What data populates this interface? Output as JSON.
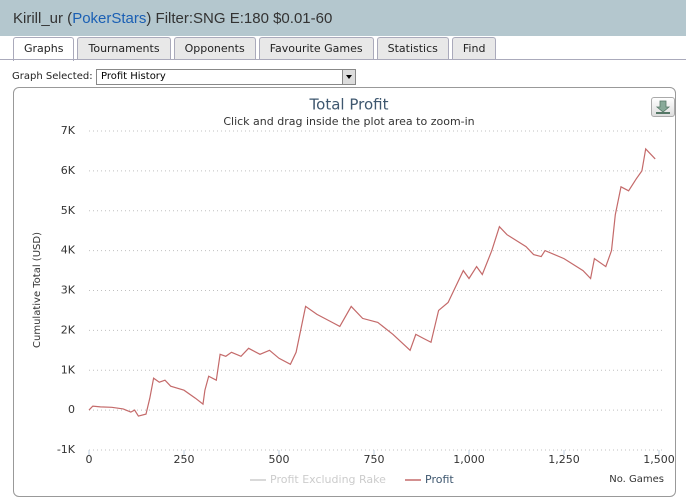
{
  "header": {
    "user": "Kirill_ur (",
    "site": "PokerStars",
    "filter": ") Filter:SNG E:180 $0.01-60"
  },
  "tabs": [
    "Graphs",
    "Tournaments",
    "Opponents",
    "Favourite Games",
    "Statistics",
    "Find"
  ],
  "active_tab": 0,
  "selector": {
    "label": "Graph Selected:",
    "value": "Profit History"
  },
  "chart_data": {
    "type": "line",
    "title": "Total Profit",
    "subtitle": "Click and drag inside the plot area to zoom-in",
    "y_label": "Cumulative Total (USD)",
    "x_label": "No. Games",
    "xlim": [
      0,
      1500
    ],
    "xticks": [
      0,
      250,
      500,
      750,
      {
        "value": 1000,
        "label": "1,000"
      },
      {
        "value": 1250,
        "label": "1,250"
      },
      {
        "value": 1500,
        "label": "1,500"
      }
    ],
    "ylim": [
      -1000,
      7000
    ],
    "yticks": [
      {
        "value": -1000,
        "label": "-1K"
      },
      0,
      {
        "value": 1000,
        "label": "1K"
      },
      {
        "value": 2000,
        "label": "2K"
      },
      {
        "value": 3000,
        "label": "3K"
      },
      {
        "value": 4000,
        "label": "4K"
      },
      {
        "value": 5000,
        "label": "5K"
      },
      {
        "value": 6000,
        "label": "6K"
      },
      {
        "value": 7000,
        "label": "7K"
      }
    ],
    "grid": true,
    "x": [
      0,
      10,
      30,
      60,
      90,
      110,
      120,
      130,
      150,
      160,
      170,
      185,
      200,
      215,
      250,
      280,
      300,
      305,
      315,
      335,
      345,
      360,
      375,
      400,
      420,
      450,
      475,
      500,
      530,
      545,
      570,
      600,
      640,
      660,
      690,
      720,
      760,
      800,
      845,
      860,
      880,
      900,
      920,
      945,
      960,
      985,
      1000,
      1020,
      1035,
      1060,
      1080,
      1100,
      1150,
      1170,
      1190,
      1200,
      1250,
      1300,
      1320,
      1330,
      1360,
      1375,
      1385,
      1400,
      1420,
      1440,
      1455,
      1465,
      1490
    ],
    "series": [
      {
        "name": "Profit",
        "color": "#c46a6a",
        "values": [
          0,
          100,
          80,
          70,
          30,
          -50,
          0,
          -150,
          -100,
          300,
          800,
          700,
          750,
          600,
          500,
          300,
          150,
          500,
          850,
          750,
          1400,
          1350,
          1450,
          1350,
          1550,
          1400,
          1500,
          1300,
          1150,
          1450,
          2600,
          2400,
          2200,
          2100,
          2600,
          2300,
          2200,
          1900,
          1500,
          1900,
          1800,
          1700,
          2500,
          2700,
          3000,
          3500,
          3300,
          3600,
          3400,
          4000,
          4600,
          4400,
          4100,
          3900,
          3850,
          4000,
          3800,
          3500,
          3300,
          3800,
          3600,
          4000,
          4900,
          5600,
          5500,
          5800,
          6000,
          6550,
          6300
        ]
      }
    ],
    "hidden_series": [
      {
        "name": "Profit Excluding Rake",
        "color": "#cccccc"
      }
    ]
  }
}
